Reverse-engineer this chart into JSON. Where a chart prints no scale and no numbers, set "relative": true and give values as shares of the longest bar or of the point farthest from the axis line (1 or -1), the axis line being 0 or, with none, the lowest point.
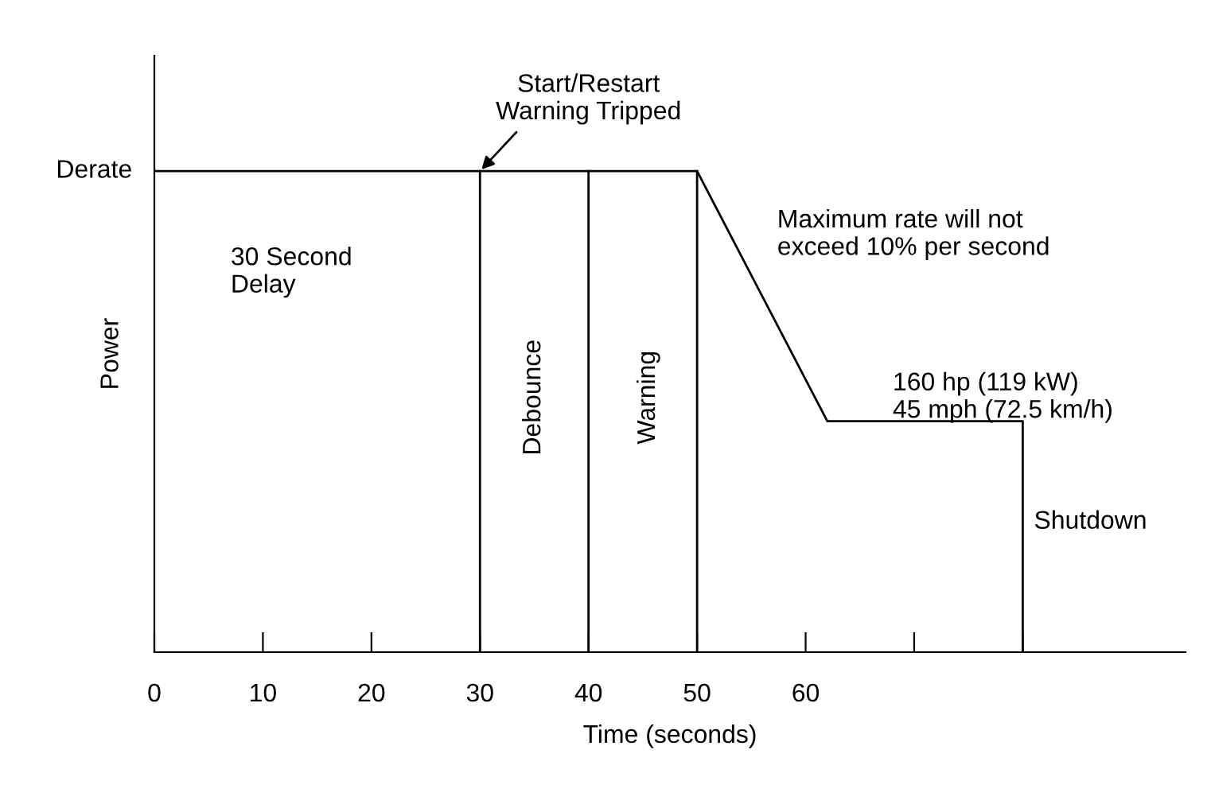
{
  "chart_data": {
    "type": "line",
    "relative": true,
    "xlabel": "Time (seconds)",
    "ylabel": "Power",
    "xlim": [
      0,
      95
    ],
    "xticks": [
      0,
      10,
      20,
      30,
      40,
      50,
      60,
      {
        "value": 70,
        "label": null
      },
      {
        "value": 80,
        "label": null
      }
    ],
    "series": [
      {
        "color": "#000000",
        "x": [
          0,
          50,
          62,
          80,
          80
        ],
        "values": [
          1,
          1,
          0.48,
          0.48,
          0
        ]
      }
    ],
    "ref_lines": [
      {
        "axis": "x",
        "value": 30,
        "color": "#000000"
      },
      {
        "axis": "x",
        "value": 40,
        "color": "#000000"
      },
      {
        "axis": "x",
        "value": 50,
        "color": "#000000"
      }
    ],
    "annotations": [
      {
        "text": "Start/Restart\nWarning Tripped",
        "x": 30,
        "y": 1
      },
      {
        "text": "Derate",
        "x": 0,
        "y": 1
      },
      "30 Second\nDelay",
      "Debounce",
      "Warning",
      "Maximum rate will not\nexceed 10% per second",
      "160 hp (119 kW)\n45 mph (72.5 km/h)",
      "Shutdown"
    ],
    "marker": "none",
    "line_style": "solid"
  }
}
